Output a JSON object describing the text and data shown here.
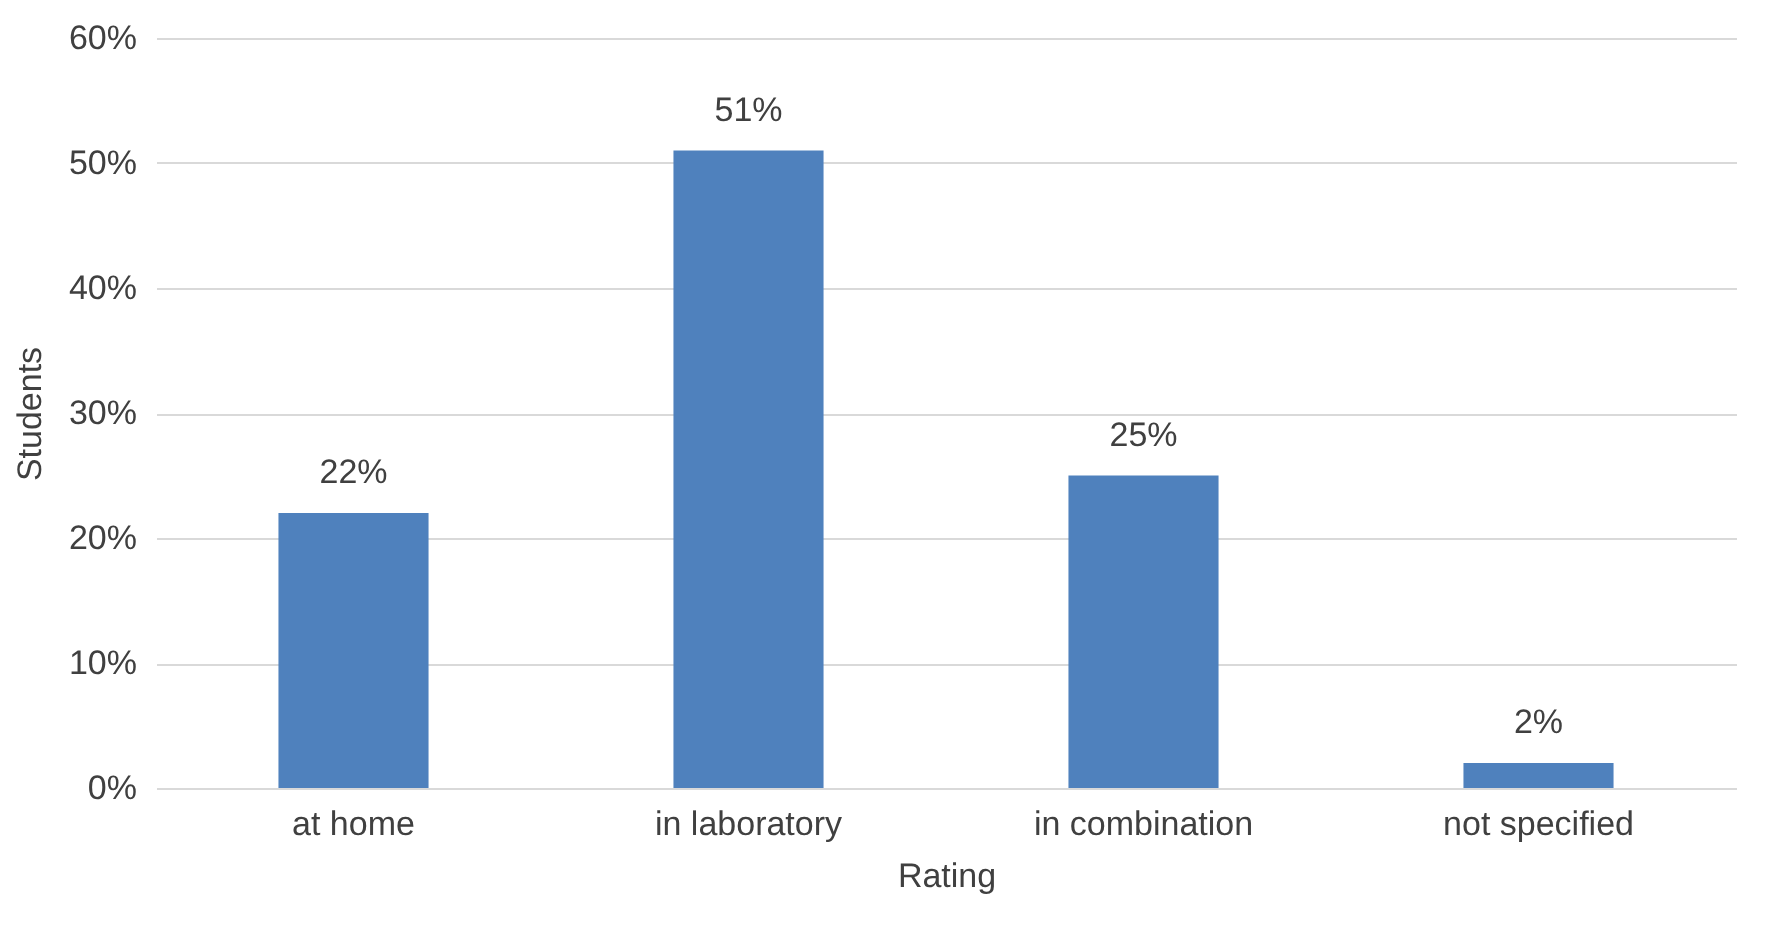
{
  "chart_data": {
    "type": "bar",
    "xlabel": "Rating",
    "ylabel": "Students",
    "categories": [
      "at home",
      "in laboratory",
      "in combination",
      "not specified"
    ],
    "values": [
      22,
      51,
      25,
      2
    ],
    "color": "#4f81bd",
    "value_labels": [
      "22%",
      "51%",
      "25%",
      "2%"
    ],
    "ylim": [
      0,
      60
    ],
    "yticks": [
      {
        "value": 0,
        "label": "0%"
      },
      {
        "value": 10,
        "label": "10%"
      },
      {
        "value": 20,
        "label": "20%"
      },
      {
        "value": 30,
        "label": "30%"
      },
      {
        "value": 40,
        "label": "40%"
      },
      {
        "value": 50,
        "label": "50%"
      },
      {
        "value": 60,
        "label": "60%"
      }
    ],
    "grid": "y"
  }
}
